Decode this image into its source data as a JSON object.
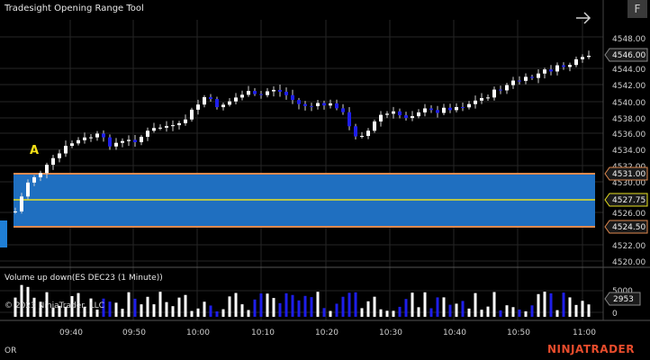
{
  "indicator_title": "Tradesight Opening Range Tool",
  "f_button": "F",
  "marker_label": "A",
  "volume_title": "Volume up down(ES DEC23 (1 Minute))",
  "copyright": "© 2023 NinjaTrader, LLC",
  "or_label": "OR",
  "logo": "NINJATRADER",
  "price_ticks": [
    "4548.00",
    "4544.00",
    "4542.00",
    "4540.00",
    "4538.00",
    "4536.00",
    "4534.00",
    "4532.00",
    "4530.00",
    "4526.00",
    "4522.00",
    "4520.00"
  ],
  "price_tags": {
    "last": "4546.00",
    "or_high": "4531.00",
    "or_mid": "4527.75",
    "or_low": "4524.50",
    "volume": "2953"
  },
  "volume_ticks": [
    "5000",
    "0"
  ],
  "time_ticks": [
    "09:40",
    "09:50",
    "10:00",
    "10:10",
    "10:20",
    "10:30",
    "10:40",
    "10:50",
    "11:00"
  ],
  "colors": {
    "up": "#ffffff",
    "down": "#1e1eea",
    "range_fill": "#1f6fc0",
    "range_border": "#e08a50",
    "mid_line": "#e8e021",
    "accent": "#e74c2c"
  }
}
